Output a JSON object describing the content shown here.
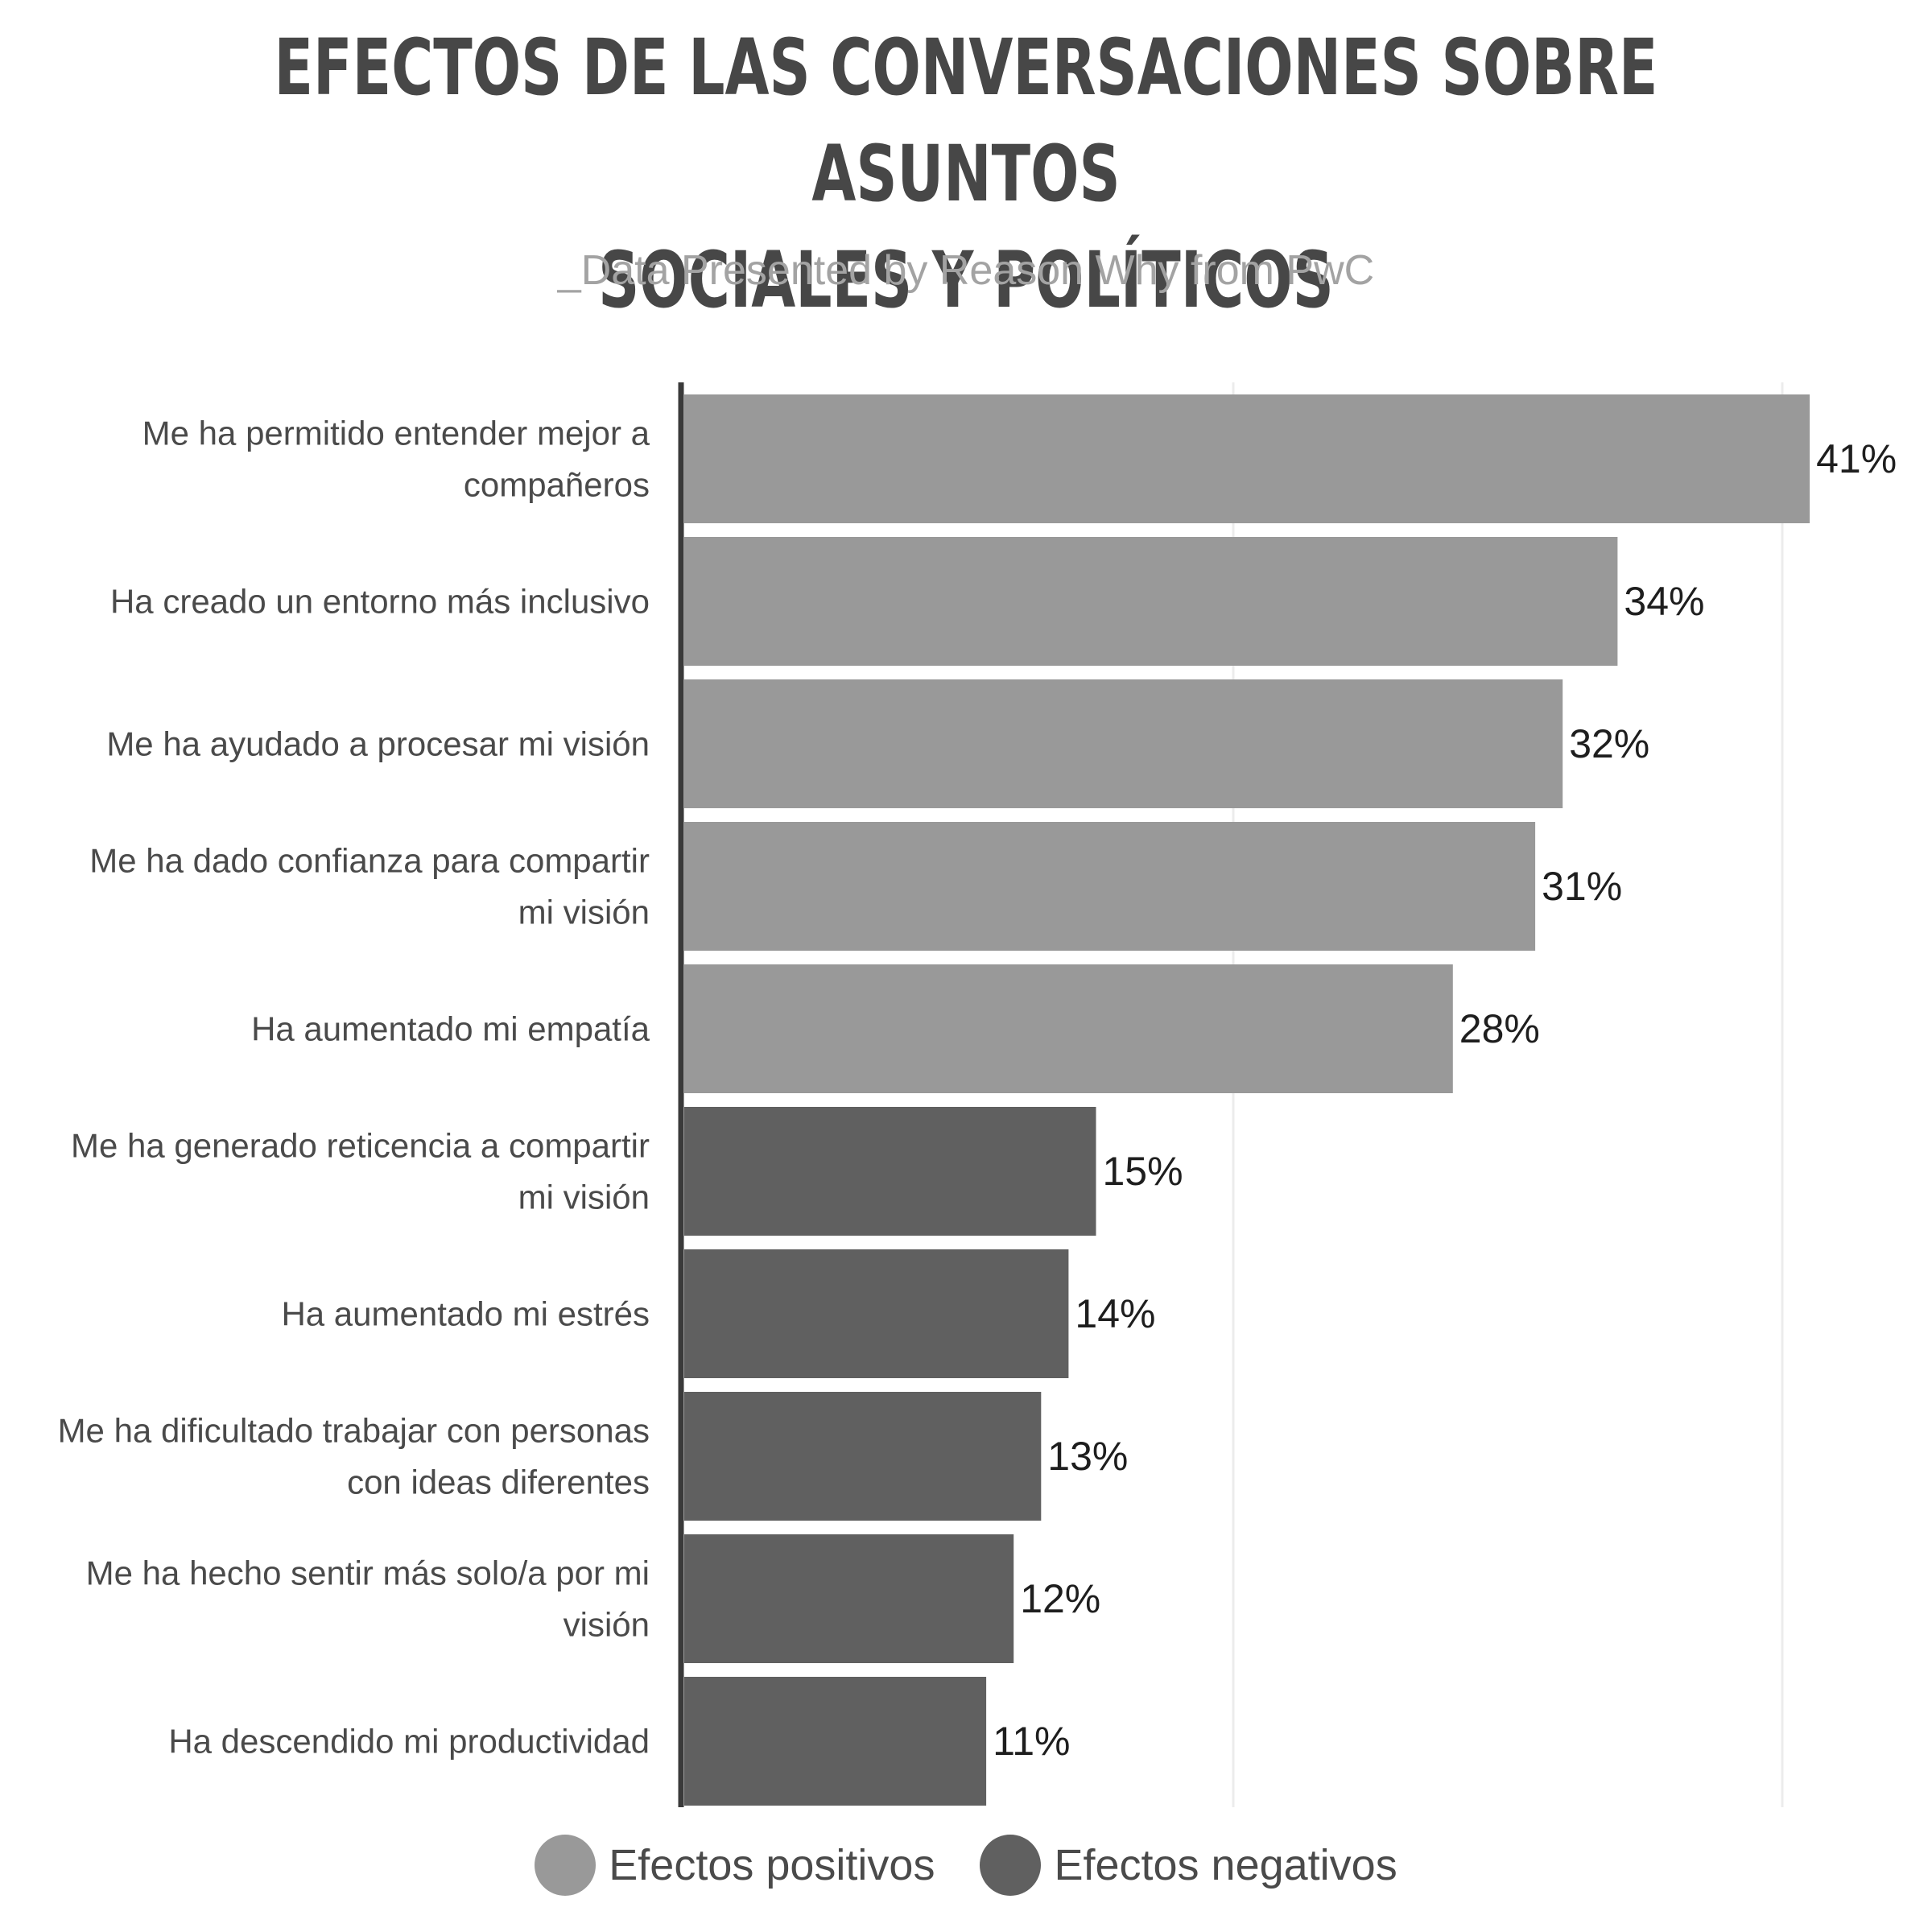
{
  "title_lines": [
    "EFECTOS DE LAS CONVERSACIONES SOBRE ASUNTOS",
    "SOCIALES Y POLÍTICOS"
  ],
  "subtitle": "_Data Presented by Reason Why from PwC",
  "colors": {
    "positive": "#999999",
    "negative": "#606060",
    "axis": "#3a3a3a",
    "grid": "#ececec"
  },
  "chart_data": {
    "type": "bar",
    "orientation": "horizontal",
    "title": "EFECTOS DE LAS CONVERSACIONES SOBRE ASUNTOS SOCIALES Y POLÍTICOS",
    "subtitle": "_Data Presented by Reason Why from PwC",
    "value_suffix": "%",
    "xlim": [
      0,
      40
    ],
    "grid": true,
    "legend_position": "bottom",
    "series": [
      {
        "name": "Efectos positivos",
        "color": "#999999"
      },
      {
        "name": "Efectos negativos",
        "color": "#606060"
      }
    ],
    "categories": [
      {
        "label": [
          "Me ha permitido entender mejor a",
          "compañeros"
        ],
        "value": 41,
        "series": "Efectos positivos"
      },
      {
        "label": [
          "Ha creado un entorno más inclusivo"
        ],
        "value": 34,
        "series": "Efectos positivos"
      },
      {
        "label": [
          "Me ha ayudado a procesar mi visión"
        ],
        "value": 32,
        "series": "Efectos positivos"
      },
      {
        "label": [
          "Me ha dado confianza para compartir",
          "mi visión"
        ],
        "value": 31,
        "series": "Efectos positivos"
      },
      {
        "label": [
          "Ha aumentado mi empatía"
        ],
        "value": 28,
        "series": "Efectos positivos"
      },
      {
        "label": [
          "Me ha generado reticencia a compartir",
          "mi visión"
        ],
        "value": 15,
        "series": "Efectos negativos"
      },
      {
        "label": [
          "Ha aumentado mi estrés"
        ],
        "value": 14,
        "series": "Efectos negativos"
      },
      {
        "label": [
          "Me ha dificultado trabajar con personas",
          "con ideas diferentes"
        ],
        "value": 13,
        "series": "Efectos negativos"
      },
      {
        "label": [
          "Me ha hecho sentir más solo/a por mi",
          "visión"
        ],
        "value": 12,
        "series": "Efectos negativos"
      },
      {
        "label": [
          "Ha descendido mi productividad"
        ],
        "value": 11,
        "series": "Efectos negativos"
      }
    ]
  },
  "legend": [
    {
      "label": "Efectos positivos",
      "color": "#999999"
    },
    {
      "label": "Efectos negativos",
      "color": "#606060"
    }
  ]
}
